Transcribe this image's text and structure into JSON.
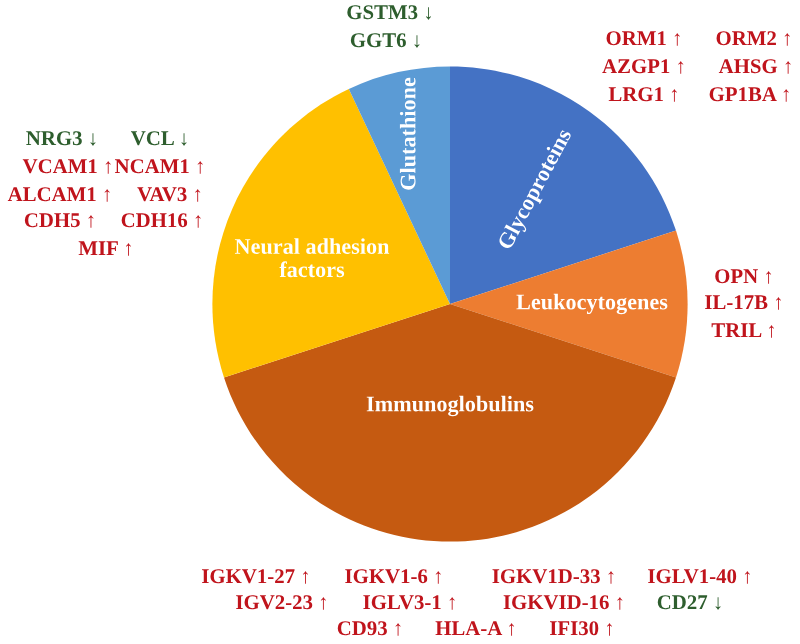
{
  "chart_data": {
    "type": "pie",
    "categories": [
      "Glycoproteins",
      "Leukocytogenes",
      "Immunoglobulins",
      "Neural adhesion\nfactors",
      "Glutathione"
    ],
    "values": [
      20,
      10,
      40,
      23,
      7
    ],
    "colors": [
      "#4472c4",
      "#ed7d31",
      "#c55a11",
      "#ffc000",
      "#5b9bd5"
    ],
    "legend": false,
    "annotations": [
      "GSTM3 ↓",
      "GGT6 ↓",
      "ORM1 ↑",
      "ORM2 ↑",
      "AZGP1 ↑",
      "AHSG ↑",
      "LRG1 ↑",
      "GP1BA ↑",
      "NRG3 ↓",
      "VCL ↓",
      "VCAM1 ↑",
      "NCAM1 ↑",
      "ALCAM1 ↑",
      "VAV3 ↑",
      "CDH5 ↑",
      "CDH16 ↑",
      "MIF ↑",
      "OPN ↑",
      "IL-17B ↑",
      "TRIL ↑",
      "IGKV1-27 ↑",
      "IGKV1-6 ↑",
      "IGKV1D-33 ↑",
      "IGLV1-40 ↑",
      "IGV2-23 ↑",
      "IGLV3-1 ↑",
      "IGKVID-16 ↑",
      "CD27 ↓",
      "CD93 ↑",
      "HLA-A ↑",
      "IFI30 ↑"
    ]
  }
}
